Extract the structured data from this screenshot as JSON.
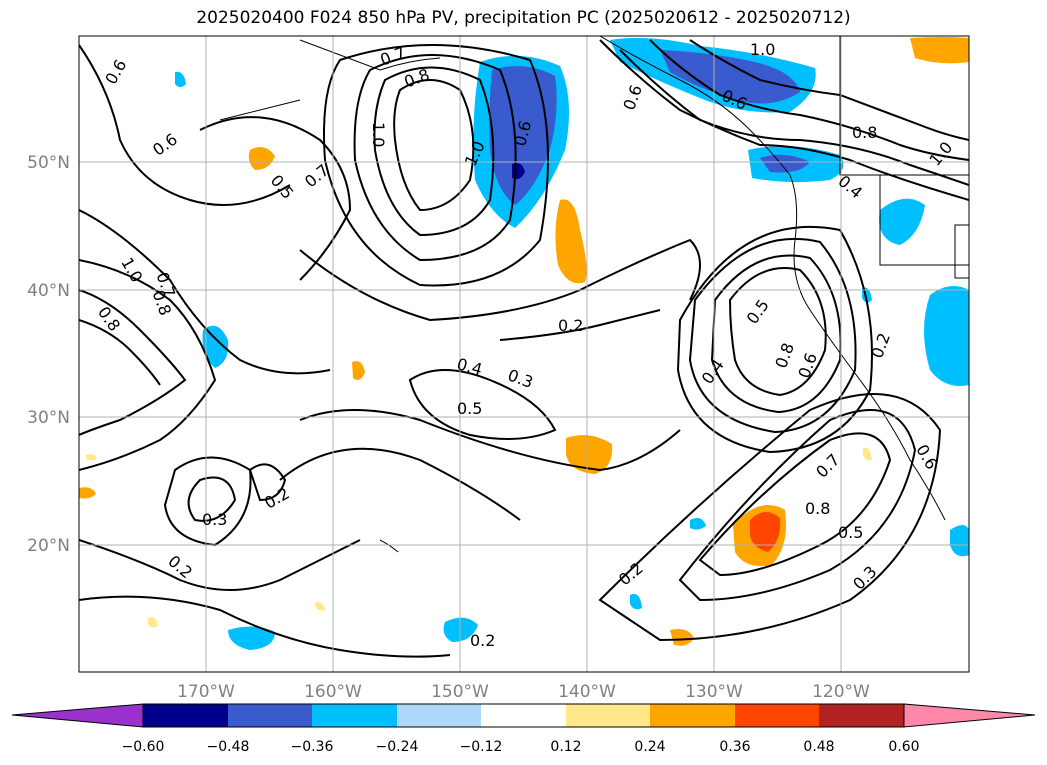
{
  "title": "2025020400 F024 850 hPa PV, precipitation PC (2025020612 - 2025020712)",
  "colors": {
    "grid": "#b0b0b0",
    "contour": "#000000",
    "coast": "#000000",
    "neg_dark": "#00008b",
    "neg_mid": "#3a5bcd",
    "neg_light": "#00bfff",
    "neg_pale": "#add8f7",
    "pos_pale": "#ffe88a",
    "pos_mid": "#ffa500",
    "pos_strong": "#ff4500",
    "pos_dark": "#b22222"
  },
  "axes": {
    "lon_ticks": [
      "170°W",
      "160°W",
      "150°W",
      "140°W",
      "130°W",
      "120°W"
    ],
    "lat_ticks": [
      "50°N",
      "40°N",
      "30°N",
      "20°N"
    ]
  },
  "colorbar": {
    "labels": [
      "−0.60",
      "−0.48",
      "−0.36",
      "−0.24",
      "−0.12",
      "0.12",
      "0.24",
      "0.36",
      "0.48",
      "0.60"
    ],
    "colors": [
      "#9932cc",
      "#00008b",
      "#3a5bcd",
      "#00bfff",
      "#add8f7",
      "#ffffff",
      "#ffe88a",
      "#ffa500",
      "#ff4500",
      "#b22222",
      "#ff88aa"
    ]
  },
  "contour_labels": [
    {
      "text": "0.6"
    },
    {
      "text": "0.6"
    },
    {
      "text": "0.7"
    },
    {
      "text": "0.8"
    },
    {
      "text": "1.0"
    },
    {
      "text": "0.5"
    },
    {
      "text": "0.7"
    },
    {
      "text": "1.0"
    },
    {
      "text": "0.6"
    },
    {
      "text": "0.6"
    },
    {
      "text": "1.0"
    },
    {
      "text": "0.6"
    },
    {
      "text": "0.8"
    },
    {
      "text": "0.4"
    },
    {
      "text": "1.0"
    },
    {
      "text": "1.0"
    },
    {
      "text": "0.7"
    },
    {
      "text": "0.8"
    },
    {
      "text": "0.8"
    },
    {
      "text": "0.2"
    },
    {
      "text": "0.5"
    },
    {
      "text": "0.4"
    },
    {
      "text": "0.8"
    },
    {
      "text": "0.6"
    },
    {
      "text": "0.2"
    },
    {
      "text": "0.4"
    },
    {
      "text": "0.3"
    },
    {
      "text": "0.5"
    },
    {
      "text": "0.3"
    },
    {
      "text": "0.2"
    },
    {
      "text": "0.7"
    },
    {
      "text": "0.6"
    },
    {
      "text": "0.8"
    },
    {
      "text": "0.5"
    },
    {
      "text": "0.3"
    },
    {
      "text": "0.2"
    },
    {
      "text": "0.2"
    },
    {
      "text": "0.2"
    }
  ]
}
